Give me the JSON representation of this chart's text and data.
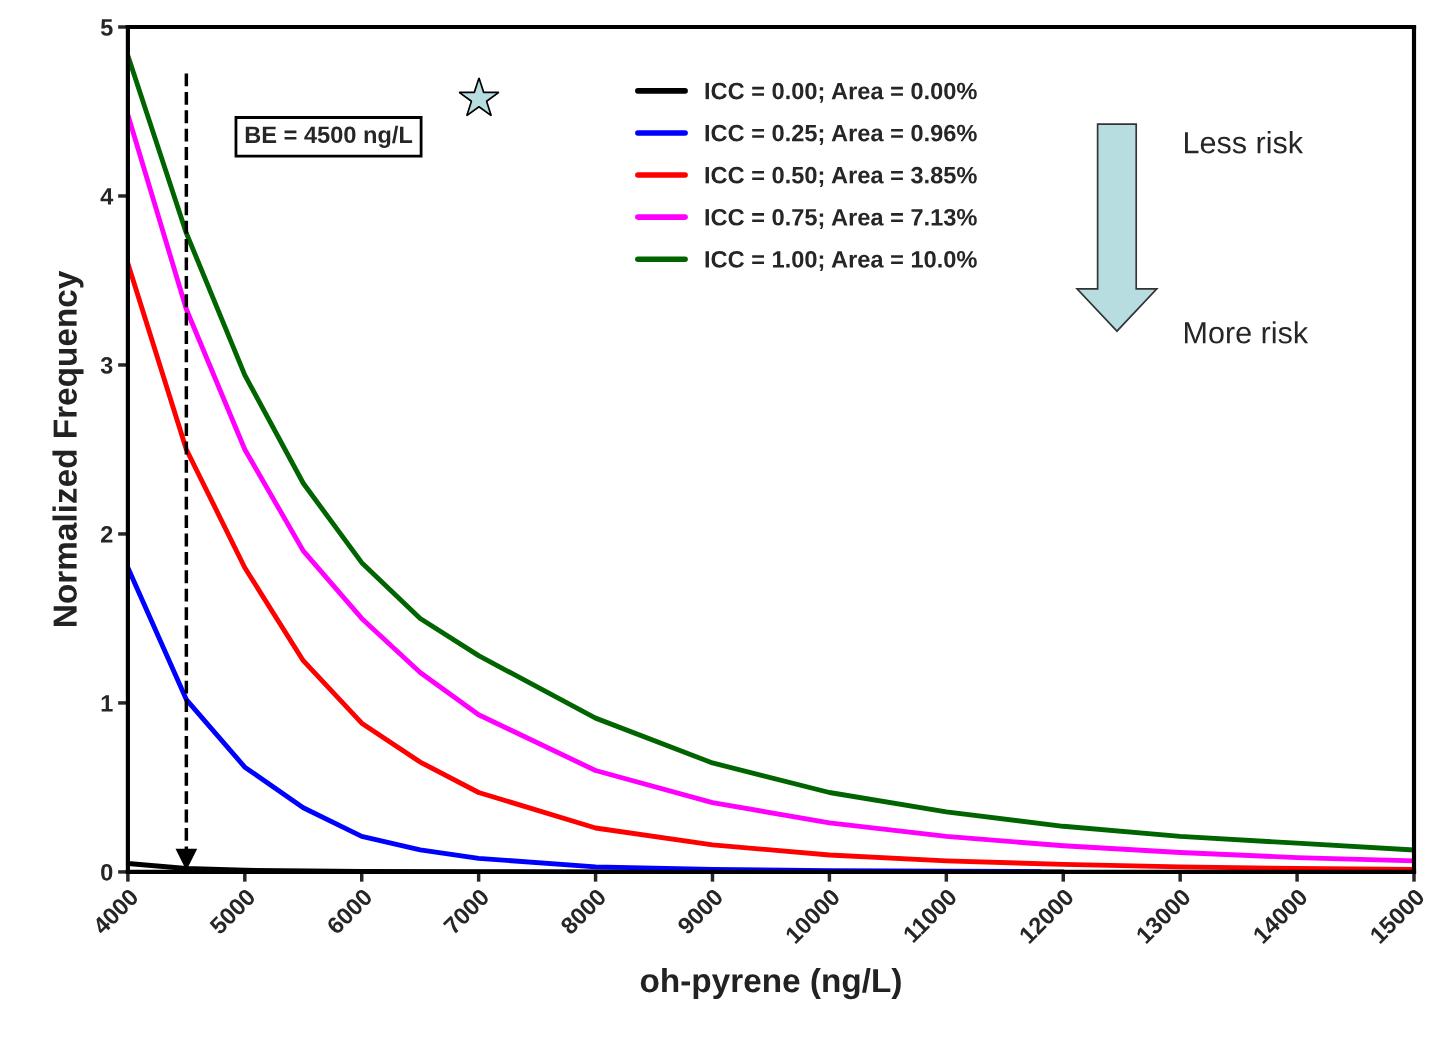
{
  "chart_data": {
    "type": "line",
    "xlabel": "oh-pyrene (ng/L)",
    "ylabel": "Normalized Frequency",
    "xlim": [
      4000,
      15000
    ],
    "xticks": [
      4000,
      5000,
      6000,
      7000,
      8000,
      9000,
      10000,
      11000,
      12000,
      13000,
      14000,
      15000
    ],
    "ylim": [
      0,
      5
    ],
    "yticks": [
      0,
      1,
      2,
      3,
      4,
      5
    ],
    "grid": false,
    "legend": "top right",
    "marker": "none",
    "line_style": "solid",
    "series": [
      {
        "name": "ICC = 0.00; Area = 0.00%",
        "color": "#000000",
        "x": [
          4000,
          4500,
          5000,
          6000,
          7000,
          8000,
          10000,
          12000
        ],
        "values": [
          0.05,
          0.02,
          0.01,
          0.003,
          0.001,
          0.0,
          0.0,
          0.0
        ]
      },
      {
        "name": "ICC = 0.25; Area = 0.96%",
        "color": "#0000ff",
        "x": [
          4000,
          4500,
          5000,
          5500,
          6000,
          6500,
          7000,
          8000,
          9000,
          10000,
          11000,
          11800
        ],
        "values": [
          1.8,
          1.02,
          0.62,
          0.38,
          0.21,
          0.13,
          0.08,
          0.03,
          0.015,
          0.007,
          0.004,
          0.002
        ]
      },
      {
        "name": "ICC = 0.50; Area = 3.85%",
        "color": "#ff0000",
        "x": [
          4000,
          4500,
          5000,
          5500,
          6000,
          6500,
          7000,
          8000,
          9000,
          10000,
          11000,
          12000,
          13000,
          14000,
          15000
        ],
        "values": [
          3.6,
          2.5,
          1.8,
          1.25,
          0.88,
          0.65,
          0.47,
          0.26,
          0.16,
          0.1,
          0.065,
          0.045,
          0.03,
          0.02,
          0.015
        ]
      },
      {
        "name": "ICC = 0.75; Area = 7.13%",
        "color": "#ff00ff",
        "x": [
          4000,
          4500,
          5000,
          5500,
          6000,
          6500,
          7000,
          8000,
          9000,
          10000,
          11000,
          12000,
          13000,
          14000,
          15000
        ],
        "values": [
          4.48,
          3.33,
          2.5,
          1.9,
          1.5,
          1.18,
          0.93,
          0.6,
          0.41,
          0.29,
          0.21,
          0.155,
          0.115,
          0.085,
          0.065
        ]
      },
      {
        "name": "ICC = 1.00; Area = 10.0%",
        "color": "#006400",
        "x": [
          4000,
          4500,
          5000,
          5500,
          6000,
          6500,
          7000,
          8000,
          9000,
          10000,
          11000,
          12000,
          13000,
          14000,
          15000
        ],
        "values": [
          4.83,
          3.78,
          2.94,
          2.3,
          1.83,
          1.5,
          1.28,
          0.91,
          0.645,
          0.47,
          0.355,
          0.27,
          0.21,
          0.17,
          0.13
        ]
      }
    ],
    "ref_lines": [
      {
        "axis": "x",
        "value": 4500,
        "label": "BE = 4500 ng/L",
        "color": "#000000",
        "line_style": "dashed"
      }
    ],
    "annotations": [
      "Less risk",
      "More risk"
    ]
  }
}
